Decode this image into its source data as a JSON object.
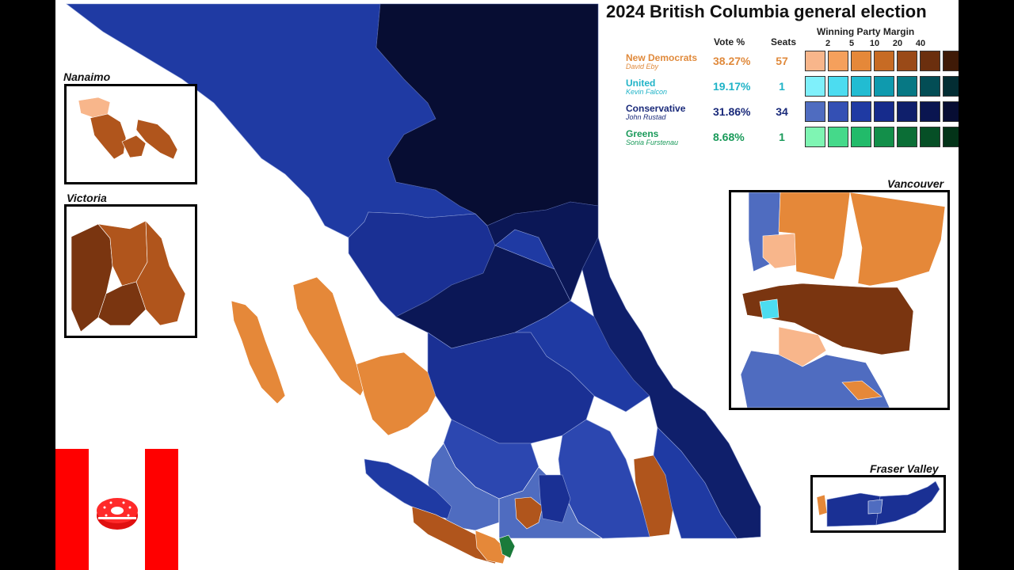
{
  "title": "2024 British Columbia general election",
  "table": {
    "vote_header": "Vote %",
    "seats_header": "Seats",
    "margin_header": "Winning Party Margin",
    "margin_ticks": [
      "2",
      "5",
      "10",
      "20",
      "40"
    ]
  },
  "parties": [
    {
      "name": "New Democrats",
      "leader": "David Eby",
      "vote": "38.27%",
      "seats": "57",
      "color": "#e08a3c",
      "scale": [
        "#f8b68b",
        "#f5a05c",
        "#e58839",
        "#c76b24",
        "#9a4a18",
        "#6b2f0e",
        "#3f1a07"
      ]
    },
    {
      "name": "United",
      "leader": "Kevin Falcon",
      "vote": "19.17%",
      "seats": "1",
      "color": "#1fb3c7",
      "scale": [
        "#7ff0fb",
        "#4cdcf0",
        "#22bcd2",
        "#0f9aae",
        "#077884",
        "#034d55",
        "#032d33"
      ]
    },
    {
      "name": "Conservative",
      "leader": "John Rustad",
      "vote": "31.86%",
      "seats": "34",
      "color": "#1a2a7a",
      "scale": [
        "#4f6cc0",
        "#3450b4",
        "#1f3aa3",
        "#162b8c",
        "#0f1f6b",
        "#0a1550",
        "#070d33"
      ]
    },
    {
      "name": "Greens",
      "leader": "Sonia Furstenau",
      "vote": "8.68%",
      "seats": "1",
      "color": "#1a9a5a",
      "scale": [
        "#7ff5b3",
        "#45d98a",
        "#22bb6a",
        "#138f4a",
        "#0b6e36",
        "#064f26",
        "#033318"
      ]
    }
  ],
  "insets": {
    "nanaimo": "Nanaimo",
    "victoria": "Victoria",
    "vancouver": "Vancouver",
    "fraser_valley": "Fraser Valley"
  },
  "colors": {
    "ndp_light": "#f8b68b",
    "ndp_mid": "#e58839",
    "ndp_dark": "#b0551c",
    "ndp_darker": "#7a3510",
    "con_1": "#4f6cc0",
    "con_2": "#2c47b0",
    "con_3": "#1a3094",
    "con_4": "#10217a",
    "con_5": "#0b1756",
    "con_6": "#070d33",
    "united": "#4cdcf0",
    "green": "#1a7a3a"
  }
}
